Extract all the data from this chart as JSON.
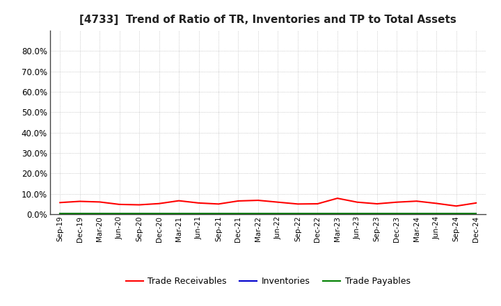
{
  "title": "[4733]  Trend of Ratio of TR, Inventories and TP to Total Assets",
  "title_fontsize": 11,
  "ylim": [
    0.0,
    0.9
  ],
  "yticks": [
    0.0,
    0.1,
    0.2,
    0.3,
    0.4,
    0.5,
    0.6,
    0.7,
    0.8
  ],
  "x_labels": [
    "Sep-19",
    "Dec-19",
    "Mar-20",
    "Jun-20",
    "Sep-20",
    "Dec-20",
    "Mar-21",
    "Jun-21",
    "Sep-21",
    "Dec-21",
    "Mar-22",
    "Jun-22",
    "Sep-22",
    "Dec-22",
    "Mar-23",
    "Jun-23",
    "Sep-23",
    "Dec-23",
    "Mar-24",
    "Jun-24",
    "Sep-24",
    "Dec-24"
  ],
  "trade_receivables": [
    0.057,
    0.063,
    0.06,
    0.048,
    0.046,
    0.052,
    0.066,
    0.055,
    0.05,
    0.065,
    0.068,
    0.059,
    0.05,
    0.051,
    0.078,
    0.059,
    0.051,
    0.059,
    0.064,
    0.053,
    0.04,
    0.055
  ],
  "inventories": [
    0.002,
    0.002,
    0.002,
    0.002,
    0.002,
    0.002,
    0.002,
    0.002,
    0.002,
    0.002,
    0.002,
    0.002,
    0.002,
    0.002,
    0.002,
    0.002,
    0.002,
    0.002,
    0.002,
    0.002,
    0.002,
    0.002
  ],
  "trade_payables": [
    0.005,
    0.005,
    0.005,
    0.005,
    0.005,
    0.005,
    0.005,
    0.005,
    0.005,
    0.005,
    0.005,
    0.005,
    0.005,
    0.005,
    0.005,
    0.005,
    0.005,
    0.005,
    0.005,
    0.005,
    0.005,
    0.005
  ],
  "tr_color": "#ff0000",
  "inv_color": "#0000cd",
  "tp_color": "#008000",
  "legend_labels": [
    "Trade Receivables",
    "Inventories",
    "Trade Payables"
  ],
  "bg_color": "#ffffff",
  "grid_color": "#bbbbbb",
  "spine_color": "#444444",
  "tick_fontsize": 7.5,
  "ytick_fontsize": 8.5,
  "legend_fontsize": 9
}
